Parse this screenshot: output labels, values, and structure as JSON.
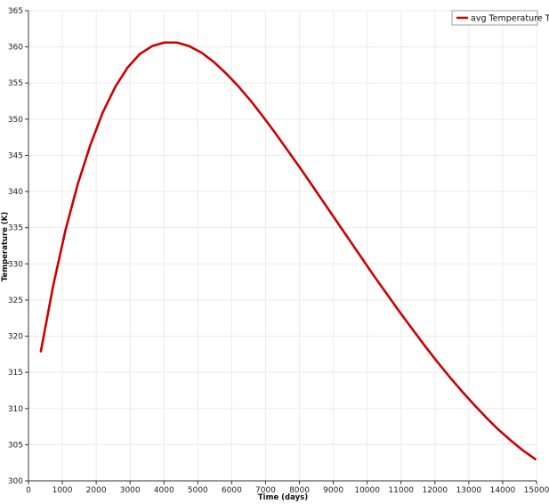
{
  "chart_data": {
    "type": "line",
    "title": "",
    "xlabel": "Time (days)",
    "ylabel": "Temperature (K)",
    "xlim": [
      0,
      15000
    ],
    "ylim": [
      300,
      365
    ],
    "xticks": [
      0,
      1000,
      2000,
      3000,
      4000,
      5000,
      6000,
      7000,
      8000,
      9000,
      10000,
      11000,
      12000,
      13000,
      14000,
      15000
    ],
    "yticks": [
      300,
      305,
      310,
      315,
      320,
      325,
      330,
      335,
      340,
      345,
      350,
      355,
      360,
      365
    ],
    "grid": true,
    "legend_position": "top-right",
    "series": [
      {
        "name": "avg Temperature T",
        "color": "#cc0000",
        "x": [
          365,
          730,
          1095,
          1460,
          1825,
          2190,
          2555,
          2920,
          3285,
          3650,
          4015,
          4380,
          4745,
          5110,
          5475,
          5840,
          6205,
          6570,
          6935,
          7300,
          7665,
          8030,
          8395,
          8760,
          9125,
          9490,
          9855,
          10220,
          10585,
          10950,
          11315,
          11680,
          12045,
          12410,
          12775,
          13140,
          13505,
          13870,
          14235,
          14600,
          14965
        ],
        "y": [
          317.9,
          327.0,
          334.7,
          341.1,
          346.4,
          350.9,
          354.4,
          357.1,
          359.0,
          360.1,
          360.6,
          360.6,
          360.1,
          359.2,
          357.9,
          356.3,
          354.5,
          352.5,
          350.3,
          348.0,
          345.6,
          343.2,
          340.7,
          338.2,
          335.7,
          333.2,
          330.7,
          328.2,
          325.8,
          323.4,
          321.1,
          318.8,
          316.6,
          314.5,
          312.5,
          310.6,
          308.8,
          307.1,
          305.6,
          304.2,
          303.0
        ]
      }
    ]
  }
}
